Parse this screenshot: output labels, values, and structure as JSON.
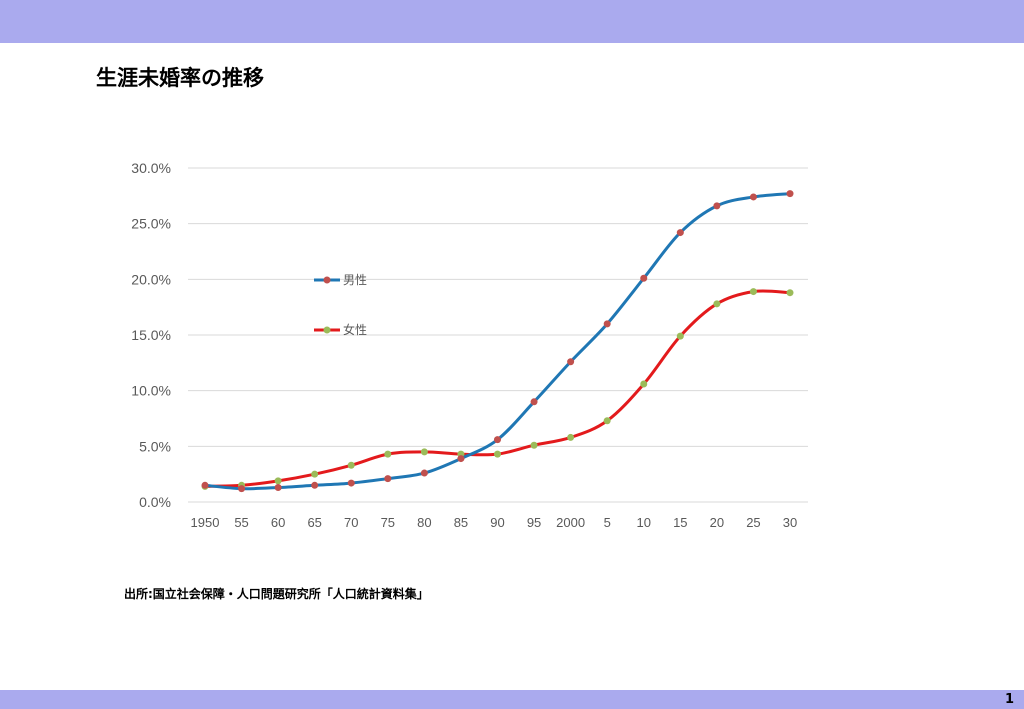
{
  "slide": {
    "title": "生涯未婚率の推移",
    "source": "出所:国立社会保障・人口問題研究所「人口統計資料集」",
    "page_number": "1",
    "band_color": "#aaaaee"
  },
  "chart_data": {
    "type": "line",
    "title": "",
    "xlabel": "",
    "ylabel": "",
    "categories": [
      "1950",
      "55",
      "60",
      "65",
      "70",
      "75",
      "80",
      "85",
      "90",
      "95",
      "2000",
      "5",
      "10",
      "15",
      "20",
      "25",
      "30"
    ],
    "ylim": [
      0,
      30
    ],
    "y_ticks": [
      0,
      5,
      10,
      15,
      20,
      25,
      30
    ],
    "y_tick_labels": [
      "0.0%",
      "5.0%",
      "10.0%",
      "15.0%",
      "20.0%",
      "25.0%",
      "30.0%"
    ],
    "grid": true,
    "legend_position": "left-inside",
    "series": [
      {
        "name": "男性",
        "line_color": "#1f77b4",
        "marker_color": "#c0504d",
        "values": [
          1.5,
          1.2,
          1.3,
          1.5,
          1.7,
          2.1,
          2.6,
          3.9,
          5.6,
          9.0,
          12.6,
          16.0,
          20.1,
          24.2,
          26.6,
          27.4,
          27.7
        ]
      },
      {
        "name": "女性",
        "line_color": "#e31a1c",
        "marker_color": "#9bbb59",
        "values": [
          1.4,
          1.5,
          1.9,
          2.5,
          3.3,
          4.3,
          4.5,
          4.3,
          4.3,
          5.1,
          5.8,
          7.3,
          10.6,
          14.9,
          17.8,
          18.9,
          18.8
        ]
      }
    ]
  }
}
